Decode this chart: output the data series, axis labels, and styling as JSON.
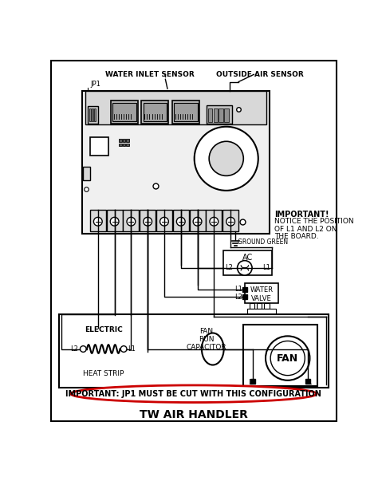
{
  "title": "TW AIR HANDLER",
  "bg_color": "#ffffff",
  "border_color": "#000000",
  "important_note": "IMPORTANT: JP1 MUST BE CUT WITH THIS CONFIGURATION",
  "important_box_color": "#cc0000",
  "side_note_lines": [
    "IMPORTANT!",
    "NOTICE THE POSITION",
    "OF L1 AND L2 ON",
    "THE BOARD."
  ],
  "labels": {
    "water_inlet_sensor": "WATER INLET SENSOR",
    "outside_air_sensor": "OUTSIDE AIR SENSOR",
    "jp1": "JP1",
    "ground_green": "GROUND GREEN",
    "ac": "AC",
    "water_valve": "WATER\nVALVE",
    "electric": "ELECTRIC",
    "heat_strip": "HEAT STRIP",
    "fan_run_capacitor": "FAN\nRUN\nCAPACITOR",
    "fan": "FAN",
    "l1": "L1",
    "l2": "L2"
  }
}
